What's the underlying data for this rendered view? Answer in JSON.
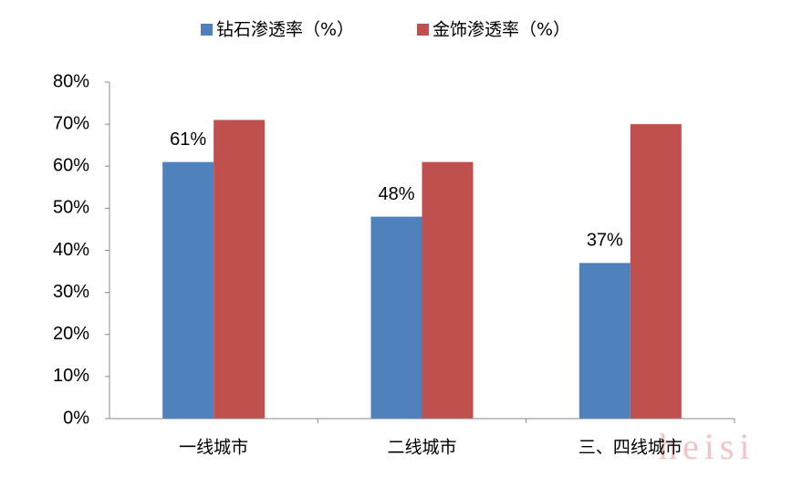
{
  "chart_data": {
    "type": "bar",
    "categories": [
      "一线城市",
      "二线城市",
      "三、四线城市"
    ],
    "series": [
      {
        "name": "钻石渗透率（%）",
        "color": "#4f81bd",
        "values": [
          61,
          48,
          37
        ],
        "value_labels": [
          "61%",
          "48%",
          "37%"
        ]
      },
      {
        "name": "金饰渗透率（%）",
        "color": "#c0504d",
        "values": [
          71,
          61,
          70
        ]
      }
    ],
    "ylim": [
      0,
      80
    ],
    "yticks": [
      {
        "value": 0,
        "label": "0%"
      },
      {
        "value": 10,
        "label": "10%"
      },
      {
        "value": 20,
        "label": "20%"
      },
      {
        "value": 30,
        "label": "30%"
      },
      {
        "value": 40,
        "label": "40%"
      },
      {
        "value": 50,
        "label": "50%"
      },
      {
        "value": 60,
        "label": "60%"
      },
      {
        "value": 70,
        "label": "70%"
      },
      {
        "value": 80,
        "label": "80%"
      }
    ],
    "legend": "top",
    "watermark": "heisi"
  }
}
